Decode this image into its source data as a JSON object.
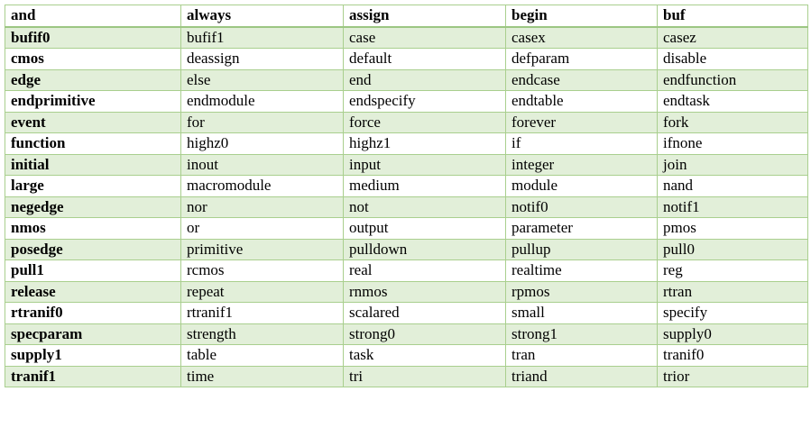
{
  "header": [
    "and",
    "always",
    "assign",
    "begin",
    "buf"
  ],
  "rows": [
    [
      "bufif0",
      "bufif1",
      "case",
      "casex",
      "casez"
    ],
    [
      "cmos",
      "deassign",
      "default",
      "defparam",
      "disable"
    ],
    [
      "edge",
      "else",
      "end",
      "endcase",
      "endfunction"
    ],
    [
      "endprimitive",
      "endmodule",
      "endspecify",
      "endtable",
      "endtask"
    ],
    [
      "event",
      "for",
      "force",
      "forever",
      "fork"
    ],
    [
      "function",
      "highz0",
      "highz1",
      "if",
      "ifnone"
    ],
    [
      "initial",
      "inout",
      "input",
      "integer",
      "join"
    ],
    [
      "large",
      "macromodule",
      "medium",
      "module",
      "nand"
    ],
    [
      "negedge",
      "nor",
      "not",
      "notif0",
      "notif1"
    ],
    [
      "nmos",
      "or",
      "output",
      "parameter",
      "pmos"
    ],
    [
      "posedge",
      "primitive",
      "pulldown",
      "pullup",
      "pull0"
    ],
    [
      "pull1",
      "rcmos",
      "real",
      "realtime",
      "reg"
    ],
    [
      "release",
      "repeat",
      "rnmos",
      "rpmos",
      "rtran"
    ],
    [
      "rtranif0",
      "rtranif1",
      "scalared",
      "small",
      "specify"
    ],
    [
      "specparam",
      "strength",
      "strong0",
      "strong1",
      "supply0"
    ],
    [
      "supply1",
      "table",
      "task",
      "tran",
      "tranif0"
    ],
    [
      "tranif1",
      "time",
      "tri",
      "triand",
      "trior"
    ]
  ],
  "colors": {
    "band": "#e2efd9",
    "border": "#a9cf8e",
    "header_rule": "#9cc682"
  }
}
